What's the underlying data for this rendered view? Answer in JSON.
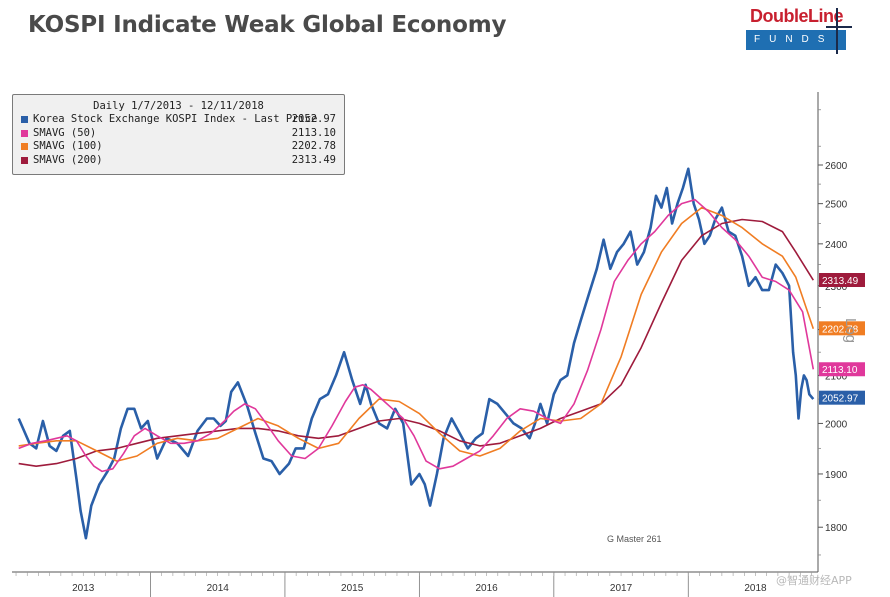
{
  "title": "KOSPI Indicate Weak Global Economy",
  "logo": {
    "top_text": "DoubleLine",
    "bar_text": "FUNDS"
  },
  "legend": {
    "title": "Daily 1/7/2013 - 12/11/2018",
    "items": [
      {
        "name": "Korea Stock Exchange KOSPI Index - Last Price",
        "value": "2052.97",
        "color": "#2a5fa8"
      },
      {
        "name": "SMAVG (50)",
        "value": "2113.10",
        "color": "#e0389b"
      },
      {
        "name": "SMAVG (100)",
        "value": "2202.78",
        "color": "#f07d23"
      },
      {
        "name": "SMAVG (200)",
        "value": "2313.49",
        "color": "#9e1b3c"
      }
    ]
  },
  "footnote": "G Master 261",
  "axis_side_label": "Log",
  "watermark": "@智通财经APP",
  "chart_data": {
    "type": "line",
    "title": "KOSPI Indicate Weak Global Economy",
    "xlabel": "",
    "ylabel": "Log",
    "yscale": "log",
    "x_range": [
      2012.97,
      2018.95
    ],
    "ylim": [
      1720,
      2800
    ],
    "y_ticks": [
      1800,
      1900,
      2000,
      2100,
      2200,
      2300,
      2400,
      2500,
      2600
    ],
    "x_ticks": [
      "2013",
      "2014",
      "2015",
      "2016",
      "2017",
      "2018"
    ],
    "x_tick_positions": [
      2013.5,
      2014.5,
      2015.5,
      2016.5,
      2017.5,
      2018.5
    ],
    "series": [
      {
        "name": "Korea Stock Exchange KOSPI Index - Last Price",
        "color": "#2a5fa8",
        "last_value": 2052.97,
        "x": [
          2013.02,
          2013.06,
          2013.1,
          2013.15,
          2013.2,
          2013.25,
          2013.3,
          2013.35,
          2013.4,
          2013.45,
          2013.48,
          2013.52,
          2013.56,
          2013.62,
          2013.68,
          2013.73,
          2013.78,
          2013.83,
          2013.88,
          2013.93,
          2013.98,
          2014.05,
          2014.12,
          2014.2,
          2014.28,
          2014.35,
          2014.42,
          2014.47,
          2014.52,
          2014.56,
          2014.6,
          2014.65,
          2014.72,
          2014.78,
          2014.84,
          2014.9,
          2014.96,
          2015.03,
          2015.08,
          2015.14,
          2015.2,
          2015.26,
          2015.32,
          2015.38,
          2015.44,
          2015.5,
          2015.56,
          2015.6,
          2015.64,
          2015.7,
          2015.76,
          2015.82,
          2015.88,
          2015.94,
          2016.0,
          2016.04,
          2016.08,
          2016.13,
          2016.18,
          2016.24,
          2016.3,
          2016.36,
          2016.42,
          2016.47,
          2016.52,
          2016.58,
          2016.64,
          2016.7,
          2016.76,
          2016.82,
          2016.86,
          2016.9,
          2016.95,
          2017.0,
          2017.05,
          2017.1,
          2017.15,
          2017.2,
          2017.26,
          2017.32,
          2017.37,
          2017.42,
          2017.47,
          2017.52,
          2017.57,
          2017.62,
          2017.67,
          2017.72,
          2017.76,
          2017.8,
          2017.84,
          2017.88,
          2017.92,
          2017.96,
          2018.0,
          2018.04,
          2018.08,
          2018.12,
          2018.16,
          2018.2,
          2018.25,
          2018.3,
          2018.35,
          2018.4,
          2018.45,
          2018.5,
          2018.55,
          2018.6,
          2018.65,
          2018.7,
          2018.75,
          2018.78,
          2018.8,
          2018.82,
          2018.84,
          2018.86,
          2018.88,
          2018.9,
          2018.93
        ],
        "y": [
          2010,
          1985,
          1960,
          1950,
          2005,
          1955,
          1945,
          1975,
          1985,
          1890,
          1830,
          1780,
          1840,
          1880,
          1905,
          1930,
          1990,
          2030,
          2030,
          1990,
          2005,
          1930,
          1970,
          1960,
          1935,
          1985,
          2010,
          2010,
          1995,
          2005,
          2065,
          2085,
          2035,
          1980,
          1930,
          1925,
          1900,
          1920,
          1950,
          1950,
          2010,
          2050,
          2060,
          2100,
          2150,
          2090,
          2040,
          2080,
          2040,
          2000,
          1990,
          2030,
          2000,
          1880,
          1900,
          1880,
          1840,
          1900,
          1970,
          2010,
          1980,
          1950,
          1970,
          1980,
          2050,
          2040,
          2020,
          2000,
          1990,
          1970,
          2000,
          2040,
          2000,
          2060,
          2090,
          2100,
          2170,
          2220,
          2280,
          2340,
          2410,
          2340,
          2380,
          2400,
          2430,
          2350,
          2380,
          2440,
          2520,
          2490,
          2540,
          2450,
          2500,
          2540,
          2590,
          2500,
          2460,
          2400,
          2420,
          2460,
          2490,
          2430,
          2420,
          2370,
          2300,
          2320,
          2290,
          2290,
          2350,
          2330,
          2300,
          2150,
          2100,
          2010,
          2070,
          2100,
          2090,
          2060,
          2050
        ]
      },
      {
        "name": "SMAVG (50)",
        "color": "#e0389b",
        "last_value": 2113.1,
        "x": [
          2013.02,
          2013.12,
          2013.22,
          2013.3,
          2013.38,
          2013.45,
          2013.52,
          2013.58,
          2013.64,
          2013.72,
          2013.8,
          2013.88,
          2013.96,
          2014.05,
          2014.15,
          2014.25,
          2014.35,
          2014.45,
          2014.55,
          2014.62,
          2014.7,
          2014.78,
          2014.86,
          2014.95,
          2015.05,
          2015.15,
          2015.25,
          2015.35,
          2015.45,
          2015.52,
          2015.58,
          2015.64,
          2015.72,
          2015.8,
          2015.88,
          2015.96,
          2016.05,
          2016.15,
          2016.25,
          2016.35,
          2016.45,
          2016.55,
          2016.65,
          2016.75,
          2016.85,
          2016.95,
          2017.05,
          2017.15,
          2017.25,
          2017.35,
          2017.45,
          2017.55,
          2017.65,
          2017.75,
          2017.85,
          2017.95,
          2018.05,
          2018.15,
          2018.25,
          2018.35,
          2018.45,
          2018.55,
          2018.65,
          2018.75,
          2018.85,
          2018.93
        ],
        "y": [
          1950,
          1960,
          1965,
          1970,
          1975,
          1965,
          1935,
          1915,
          1905,
          1910,
          1940,
          1975,
          1990,
          1975,
          1960,
          1960,
          1965,
          1980,
          2005,
          2025,
          2040,
          2030,
          2000,
          1965,
          1935,
          1930,
          1950,
          1995,
          2045,
          2075,
          2080,
          2070,
          2050,
          2030,
          2010,
          1975,
          1925,
          1910,
          1915,
          1930,
          1945,
          1975,
          2010,
          2030,
          2025,
          2010,
          2000,
          2040,
          2110,
          2200,
          2310,
          2360,
          2400,
          2430,
          2470,
          2500,
          2510,
          2480,
          2440,
          2410,
          2370,
          2320,
          2310,
          2290,
          2240,
          2113
        ]
      },
      {
        "name": "SMAVG (100)",
        "color": "#f07d23",
        "last_value": 2202.78,
        "x": [
          2013.02,
          2013.15,
          2013.3,
          2013.45,
          2013.6,
          2013.75,
          2013.9,
          2014.05,
          2014.2,
          2014.35,
          2014.5,
          2014.65,
          2014.8,
          2014.95,
          2015.1,
          2015.25,
          2015.4,
          2015.55,
          2015.7,
          2015.85,
          2016.0,
          2016.15,
          2016.3,
          2016.45,
          2016.6,
          2016.75,
          2016.9,
          2017.05,
          2017.2,
          2017.35,
          2017.5,
          2017.65,
          2017.8,
          2017.95,
          2018.1,
          2018.25,
          2018.4,
          2018.55,
          2018.7,
          2018.8,
          2018.93
        ],
        "y": [
          1955,
          1960,
          1965,
          1965,
          1945,
          1925,
          1935,
          1960,
          1970,
          1965,
          1970,
          1990,
          2010,
          1995,
          1970,
          1950,
          1960,
          2010,
          2050,
          2045,
          2020,
          1980,
          1945,
          1935,
          1950,
          1985,
          2010,
          2005,
          2010,
          2040,
          2140,
          2280,
          2380,
          2450,
          2490,
          2470,
          2440,
          2400,
          2370,
          2320,
          2202
        ]
      },
      {
        "name": "SMAVG (200)",
        "color": "#9e1b3c",
        "last_value": 2313.49,
        "x": [
          2013.02,
          2013.15,
          2013.3,
          2013.45,
          2013.6,
          2013.75,
          2013.9,
          2014.05,
          2014.2,
          2014.35,
          2014.5,
          2014.65,
          2014.8,
          2014.95,
          2015.1,
          2015.25,
          2015.4,
          2015.55,
          2015.7,
          2015.85,
          2016.0,
          2016.15,
          2016.3,
          2016.45,
          2016.6,
          2016.75,
          2016.9,
          2017.05,
          2017.2,
          2017.35,
          2017.5,
          2017.65,
          2017.8,
          2017.95,
          2018.1,
          2018.25,
          2018.4,
          2018.55,
          2018.7,
          2018.8,
          2018.93
        ],
        "y": [
          1920,
          1915,
          1920,
          1930,
          1945,
          1950,
          1960,
          1970,
          1975,
          1980,
          1985,
          1990,
          1990,
          1985,
          1975,
          1970,
          1975,
          1990,
          2005,
          2010,
          2000,
          1985,
          1965,
          1955,
          1960,
          1975,
          1990,
          2010,
          2025,
          2040,
          2080,
          2160,
          2260,
          2360,
          2420,
          2450,
          2460,
          2455,
          2430,
          2380,
          2313
        ]
      }
    ]
  }
}
